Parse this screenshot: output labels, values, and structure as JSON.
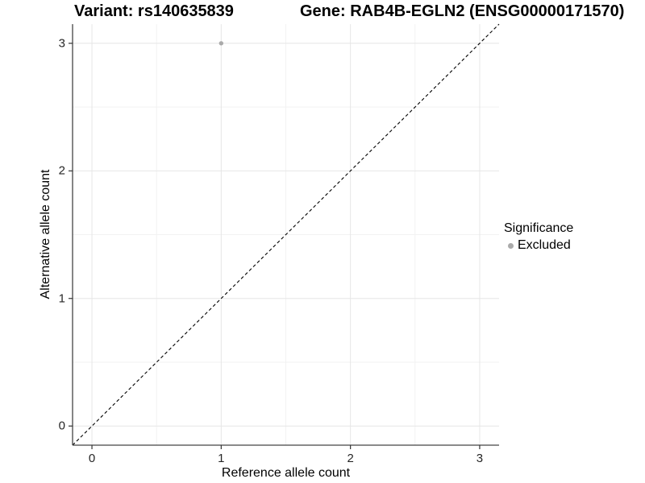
{
  "titles": {
    "variant": "Variant: rs140635839",
    "gene": "Gene: RAB4B-EGLN2 (ENSG00000171570)"
  },
  "legend": {
    "title": "Significance",
    "items": [
      {
        "label": "Excluded",
        "color": "#aaaaaa"
      }
    ]
  },
  "chart_data": {
    "type": "scatter",
    "title_left": "Variant: rs140635839",
    "title_right": "Gene: RAB4B-EGLN2 (ENSG00000171570)",
    "xlabel": "Reference allele count",
    "ylabel": "Alternative allele count",
    "xlim": [
      -0.15,
      3.15
    ],
    "ylim": [
      -0.15,
      3.15
    ],
    "x_ticks": [
      0,
      1,
      2,
      3
    ],
    "y_ticks": [
      0,
      1,
      2,
      3
    ],
    "x_minor_ticks": [
      0.5,
      1.5,
      2.5
    ],
    "y_minor_ticks": [
      0.5,
      1.5,
      2.5
    ],
    "grid": true,
    "legend_position": "right",
    "series": [
      {
        "name": "Excluded",
        "color": "#aaaaaa",
        "point_radius": 2.7,
        "points": [
          {
            "x": 1,
            "y": 3
          }
        ]
      }
    ],
    "reference_line": {
      "description": "identity line y = x",
      "style": "dashed",
      "color": "#000000"
    },
    "colors": {
      "major_grid": "#e6e6e6",
      "minor_grid": "#f2f2f2",
      "axis_line": "#444444",
      "tick_mark": "#333333",
      "tick_label": "#262626",
      "background": "#ffffff"
    }
  }
}
